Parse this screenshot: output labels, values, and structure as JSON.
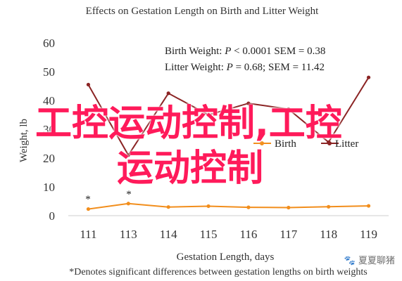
{
  "chart_data": {
    "type": "line",
    "title": "Effects on Gestation Length on Birth and Litter Weight",
    "xlabel": "Gestation Length, days",
    "ylabel": "Weight, lb",
    "categories": [
      "111",
      "113",
      "114",
      "115",
      "116",
      "117",
      "118",
      "119"
    ],
    "ylim": [
      0,
      60
    ],
    "yticks": [
      "0",
      "10",
      "20",
      "30",
      "40",
      "50",
      "60"
    ],
    "grid": false,
    "series": [
      {
        "name": "Birth",
        "color": "#f28e1c",
        "values": [
          2.3,
          4.2,
          3.0,
          3.3,
          2.9,
          2.8,
          3.1,
          3.4
        ]
      },
      {
        "name": "Litter",
        "color": "#8b2424",
        "values": [
          45.5,
          21,
          42.5,
          35,
          39,
          37,
          25.5,
          48
        ]
      }
    ],
    "stats": {
      "birth": [
        "Birth Weight: ",
        "P",
        " < 0.0001 SEM = 0.38"
      ],
      "litter": [
        "Litter Weight: ",
        "P",
        " = 0.68; SEM = 11.42"
      ]
    },
    "asterisk": "*",
    "footnote": "*Denotes significant differences between gestation lengths on birth weights"
  },
  "overlay": {
    "line1": "工控运动控制,工控",
    "line2": "运动控制"
  },
  "watermark": "夏夏聊猪"
}
